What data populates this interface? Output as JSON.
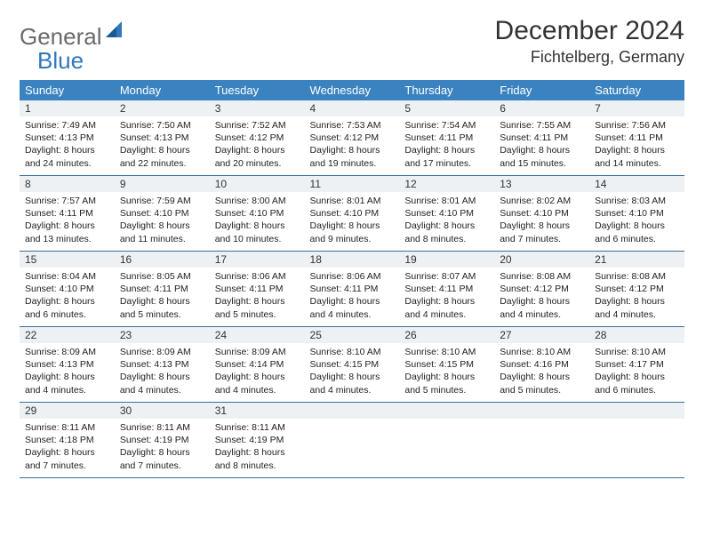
{
  "logo": {
    "word1": "General",
    "word2": "Blue"
  },
  "title": "December 2024",
  "location": "Fichtelberg, Germany",
  "colors": {
    "header_bg": "#3b83c0",
    "header_text": "#ffffff",
    "daynum_bg": "#eef1f4",
    "border": "#3b6e9a",
    "logo_gray": "#6a6a6a",
    "logo_blue": "#2f78bb",
    "text": "#222222"
  },
  "day_headers": [
    "Sunday",
    "Monday",
    "Tuesday",
    "Wednesday",
    "Thursday",
    "Friday",
    "Saturday"
  ],
  "weeks": [
    [
      {
        "n": "1",
        "sr": "7:49 AM",
        "ss": "4:13 PM",
        "dl": "8 hours and 24 minutes."
      },
      {
        "n": "2",
        "sr": "7:50 AM",
        "ss": "4:13 PM",
        "dl": "8 hours and 22 minutes."
      },
      {
        "n": "3",
        "sr": "7:52 AM",
        "ss": "4:12 PM",
        "dl": "8 hours and 20 minutes."
      },
      {
        "n": "4",
        "sr": "7:53 AM",
        "ss": "4:12 PM",
        "dl": "8 hours and 19 minutes."
      },
      {
        "n": "5",
        "sr": "7:54 AM",
        "ss": "4:11 PM",
        "dl": "8 hours and 17 minutes."
      },
      {
        "n": "6",
        "sr": "7:55 AM",
        "ss": "4:11 PM",
        "dl": "8 hours and 15 minutes."
      },
      {
        "n": "7",
        "sr": "7:56 AM",
        "ss": "4:11 PM",
        "dl": "8 hours and 14 minutes."
      }
    ],
    [
      {
        "n": "8",
        "sr": "7:57 AM",
        "ss": "4:11 PM",
        "dl": "8 hours and 13 minutes."
      },
      {
        "n": "9",
        "sr": "7:59 AM",
        "ss": "4:10 PM",
        "dl": "8 hours and 11 minutes."
      },
      {
        "n": "10",
        "sr": "8:00 AM",
        "ss": "4:10 PM",
        "dl": "8 hours and 10 minutes."
      },
      {
        "n": "11",
        "sr": "8:01 AM",
        "ss": "4:10 PM",
        "dl": "8 hours and 9 minutes."
      },
      {
        "n": "12",
        "sr": "8:01 AM",
        "ss": "4:10 PM",
        "dl": "8 hours and 8 minutes."
      },
      {
        "n": "13",
        "sr": "8:02 AM",
        "ss": "4:10 PM",
        "dl": "8 hours and 7 minutes."
      },
      {
        "n": "14",
        "sr": "8:03 AM",
        "ss": "4:10 PM",
        "dl": "8 hours and 6 minutes."
      }
    ],
    [
      {
        "n": "15",
        "sr": "8:04 AM",
        "ss": "4:10 PM",
        "dl": "8 hours and 6 minutes."
      },
      {
        "n": "16",
        "sr": "8:05 AM",
        "ss": "4:11 PM",
        "dl": "8 hours and 5 minutes."
      },
      {
        "n": "17",
        "sr": "8:06 AM",
        "ss": "4:11 PM",
        "dl": "8 hours and 5 minutes."
      },
      {
        "n": "18",
        "sr": "8:06 AM",
        "ss": "4:11 PM",
        "dl": "8 hours and 4 minutes."
      },
      {
        "n": "19",
        "sr": "8:07 AM",
        "ss": "4:11 PM",
        "dl": "8 hours and 4 minutes."
      },
      {
        "n": "20",
        "sr": "8:08 AM",
        "ss": "4:12 PM",
        "dl": "8 hours and 4 minutes."
      },
      {
        "n": "21",
        "sr": "8:08 AM",
        "ss": "4:12 PM",
        "dl": "8 hours and 4 minutes."
      }
    ],
    [
      {
        "n": "22",
        "sr": "8:09 AM",
        "ss": "4:13 PM",
        "dl": "8 hours and 4 minutes."
      },
      {
        "n": "23",
        "sr": "8:09 AM",
        "ss": "4:13 PM",
        "dl": "8 hours and 4 minutes."
      },
      {
        "n": "24",
        "sr": "8:09 AM",
        "ss": "4:14 PM",
        "dl": "8 hours and 4 minutes."
      },
      {
        "n": "25",
        "sr": "8:10 AM",
        "ss": "4:15 PM",
        "dl": "8 hours and 4 minutes."
      },
      {
        "n": "26",
        "sr": "8:10 AM",
        "ss": "4:15 PM",
        "dl": "8 hours and 5 minutes."
      },
      {
        "n": "27",
        "sr": "8:10 AM",
        "ss": "4:16 PM",
        "dl": "8 hours and 5 minutes."
      },
      {
        "n": "28",
        "sr": "8:10 AM",
        "ss": "4:17 PM",
        "dl": "8 hours and 6 minutes."
      }
    ],
    [
      {
        "n": "29",
        "sr": "8:11 AM",
        "ss": "4:18 PM",
        "dl": "8 hours and 7 minutes."
      },
      {
        "n": "30",
        "sr": "8:11 AM",
        "ss": "4:19 PM",
        "dl": "8 hours and 7 minutes."
      },
      {
        "n": "31",
        "sr": "8:11 AM",
        "ss": "4:19 PM",
        "dl": "8 hours and 8 minutes."
      },
      null,
      null,
      null,
      null
    ]
  ],
  "labels": {
    "sunrise": "Sunrise:",
    "sunset": "Sunset:",
    "daylight": "Daylight:"
  }
}
